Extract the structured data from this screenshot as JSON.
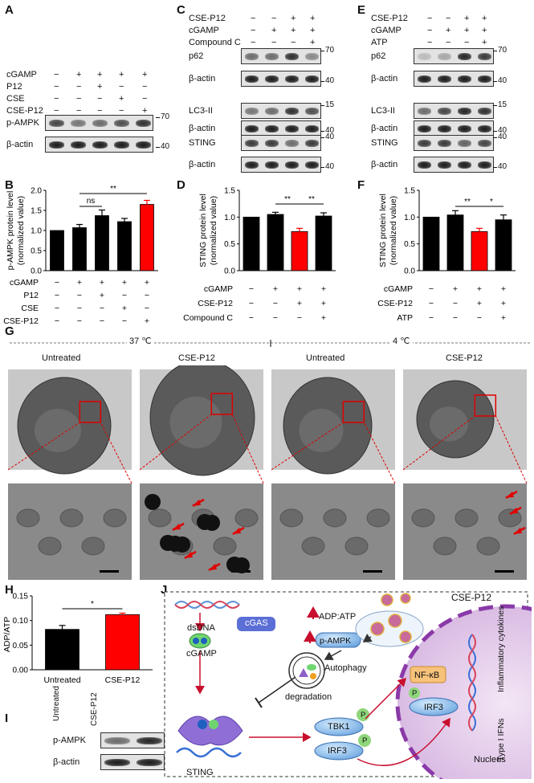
{
  "panels": {
    "A": {
      "label": "A",
      "rows": [
        "cGAMP",
        "P12",
        "CSE",
        "CSE-P12"
      ],
      "signs": [
        [
          "−",
          "+",
          "+",
          "+",
          "+"
        ],
        [
          "−",
          "−",
          "+",
          "−",
          "−"
        ],
        [
          "−",
          "−",
          "−",
          "+",
          "−"
        ],
        [
          "−",
          "−",
          "−",
          "−",
          "+"
        ]
      ],
      "blots": [
        "p-AMPK",
        "β-actin"
      ],
      "mw": [
        "70",
        "40"
      ]
    },
    "C": {
      "label": "C",
      "rows": [
        "CSE-P12",
        "cGAMP",
        "Compound C"
      ],
      "signs": [
        [
          "−",
          "−",
          "+",
          "+"
        ],
        [
          "−",
          "+",
          "+",
          "+"
        ],
        [
          "−",
          "−",
          "−",
          "+"
        ]
      ],
      "blots": [
        "p62",
        "β-actin",
        "LC3-II",
        "β-actin",
        "STING",
        "β-actin"
      ],
      "mw": [
        "70",
        "40",
        "15",
        "40",
        "40",
        "40"
      ]
    },
    "E": {
      "label": "E",
      "rows": [
        "CSE-P12",
        "cGAMP",
        "ATP"
      ],
      "signs": [
        [
          "−",
          "−",
          "+",
          "+"
        ],
        [
          "−",
          "+",
          "+",
          "+"
        ],
        [
          "−",
          "−",
          "−",
          "+"
        ]
      ],
      "blots": [
        "p62",
        "β-actin",
        "LC3-II",
        "β-actin",
        "STING",
        "β-actin"
      ],
      "mw": [
        "70",
        "40",
        "15",
        "40",
        "40",
        "40"
      ]
    },
    "B": {
      "label": "B",
      "ylabel1": "p-AMPK protein level",
      "ylabel2": "(normalized value)",
      "rows": [
        "cGAMP",
        "P12",
        "CSE",
        "CSE-P12"
      ],
      "signs": [
        [
          "−",
          "+",
          "+",
          "+",
          "+"
        ],
        [
          "−",
          "−",
          "+",
          "−",
          "−"
        ],
        [
          "−",
          "−",
          "−",
          "+",
          "−"
        ],
        [
          "−",
          "−",
          "−",
          "−",
          "+"
        ]
      ],
      "sig": [
        "ns",
        "**"
      ]
    },
    "D": {
      "label": "D",
      "ylabel1": "STING protein level",
      "ylabel2": "(normalized value)",
      "rows": [
        "cGAMP",
        "CSE-P12",
        "Compound C"
      ],
      "signs": [
        [
          "−",
          "+",
          "+",
          "+"
        ],
        [
          "−",
          "−",
          "+",
          "+"
        ],
        [
          "−",
          "−",
          "−",
          "+"
        ]
      ],
      "sig": [
        "**",
        "**"
      ]
    },
    "F": {
      "label": "F",
      "ylabel1": "STING protein level",
      "ylabel2": "(normalized value)",
      "rows": [
        "cGAMP",
        "CSE-P12",
        "ATP"
      ],
      "signs": [
        [
          "−",
          "+",
          "+",
          "+"
        ],
        [
          "−",
          "−",
          "+",
          "+"
        ],
        [
          "−",
          "−",
          "−",
          "+"
        ]
      ],
      "sig": [
        "**",
        "*"
      ]
    },
    "G": {
      "label": "G",
      "temp1": "37 ℃",
      "temp2": "4 ℃",
      "cols": [
        "Untreated",
        "CSE-P12",
        "Untreated",
        "CSE-P12"
      ]
    },
    "H": {
      "label": "H",
      "ylabel": "ADP/ATP",
      "xcats": [
        "Untreated",
        "CSE-P12"
      ],
      "sig": "*"
    },
    "I": {
      "label": "I",
      "cols": [
        "Untreated",
        "CSE-P12"
      ],
      "blots": [
        "p-AMPK",
        "β-actin"
      ],
      "mw": [
        "70",
        "40"
      ]
    },
    "J": {
      "label": "J",
      "cse": "CSE-P12",
      "adp": "ADP:ATP",
      "pampk": "p-AMPK",
      "dsdna": "dsDNA",
      "cgas": "cGAS",
      "cgamp": "cGAMP",
      "autophagy": "Autophagy",
      "degradation": "degradation",
      "sting": "STING",
      "tbk1": "TBK1",
      "irf3": "IRF3",
      "nfkb": "NF-κB",
      "p": "P",
      "nucleus": "Nucleus",
      "cyt": "Inflammatory cytokines",
      "ifn": "Type I IFNs"
    }
  },
  "chart_data": [
    {
      "type": "bar",
      "panel": "B",
      "categories": [
        "1",
        "2",
        "3",
        "4",
        "5"
      ],
      "values": [
        1.0,
        1.07,
        1.37,
        1.22,
        1.65
      ],
      "errors": [
        0,
        0.08,
        0.14,
        0.08,
        0.1
      ],
      "colors": [
        "#000000",
        "#000000",
        "#000000",
        "#000000",
        "#ff0000"
      ],
      "ylim": [
        0,
        2.0
      ],
      "yticks": [
        "0.0",
        "0.5",
        "1.0",
        "1.5",
        "2.0"
      ]
    },
    {
      "type": "bar",
      "panel": "D",
      "categories": [
        "1",
        "2",
        "3",
        "4"
      ],
      "values": [
        1.0,
        1.05,
        0.73,
        1.02
      ],
      "errors": [
        0,
        0.04,
        0.06,
        0.06
      ],
      "colors": [
        "#000000",
        "#000000",
        "#ff0000",
        "#000000"
      ],
      "ylim": [
        0,
        1.5
      ],
      "yticks": [
        "0.0",
        "0.5",
        "1.0",
        "1.5"
      ]
    },
    {
      "type": "bar",
      "panel": "F",
      "categories": [
        "1",
        "2",
        "3",
        "4"
      ],
      "values": [
        1.0,
        1.04,
        0.73,
        0.95
      ],
      "errors": [
        0,
        0.08,
        0.06,
        0.09
      ],
      "colors": [
        "#000000",
        "#000000",
        "#ff0000",
        "#000000"
      ],
      "ylim": [
        0,
        1.5
      ],
      "yticks": [
        "0.0",
        "0.5",
        "1.0",
        "1.5"
      ]
    },
    {
      "type": "bar",
      "panel": "H",
      "categories": [
        "Untreated",
        "CSE-P12"
      ],
      "values": [
        0.082,
        0.112
      ],
      "errors": [
        0.008,
        0.003
      ],
      "colors": [
        "#000000",
        "#ff0000"
      ],
      "ylim": [
        0,
        0.15
      ],
      "yticks": [
        "0.00",
        "0.05",
        "0.10",
        "0.15"
      ]
    }
  ]
}
